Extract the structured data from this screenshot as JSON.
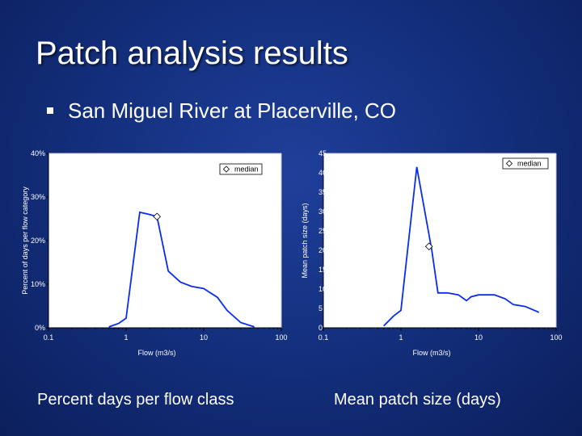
{
  "slide": {
    "title": "Patch analysis results",
    "bullet": "San Miguel River at Placerville, CO",
    "caption_left": "Percent days per flow class",
    "caption_right": "Mean patch size (days)"
  },
  "chart_data": [
    {
      "type": "line",
      "title": "",
      "xlabel": "Flow (m3/s)",
      "ylabel": "Percent of days per flow category",
      "x_scale": "log",
      "xlim": [
        0.1,
        100
      ],
      "ylim": [
        0,
        40
      ],
      "x_ticks": [
        "0.1",
        "1",
        "10",
        "100"
      ],
      "y_ticks": [
        "0%",
        "10%",
        "20%",
        "30%",
        "40%"
      ],
      "grid": false,
      "legend": {
        "position": "top-right",
        "label": "median"
      },
      "series": [
        {
          "x": [
            0.6,
            0.8,
            1.0,
            1.5,
            2.0,
            2.5,
            3.5,
            5,
            7,
            10,
            15,
            20,
            30,
            45
          ],
          "y": [
            0.2,
            1.0,
            2.2,
            26.5,
            26.0,
            25.5,
            13.0,
            10.5,
            9.5,
            9.0,
            7.0,
            4.0,
            1.2,
            0.2
          ]
        }
      ],
      "median": {
        "x": 2.5,
        "y": 25.5
      },
      "line_color": "#0a2cf0"
    },
    {
      "type": "line",
      "title": "",
      "xlabel": "Flow (m3/s)",
      "ylabel": "Mean patch size (days)",
      "x_scale": "log",
      "xlim": [
        0.1,
        100
      ],
      "ylim": [
        0,
        45
      ],
      "x_ticks": [
        "0.1",
        "1",
        "10",
        "100"
      ],
      "y_ticks": [
        "0",
        "5",
        "10",
        "15",
        "20",
        "25",
        "30",
        "35",
        "40",
        "45"
      ],
      "grid": false,
      "legend": {
        "position": "top-right",
        "label": "median"
      },
      "series": [
        {
          "x": [
            0.6,
            0.8,
            1.0,
            1.6,
            2.5,
            3.0,
            4.0,
            5.5,
            7,
            8,
            10,
            12,
            16,
            22,
            28,
            40,
            60
          ],
          "y": [
            0.5,
            3.0,
            4.5,
            41.5,
            20.0,
            9.0,
            9.0,
            8.5,
            7.0,
            8.0,
            8.5,
            8.5,
            8.5,
            7.5,
            6.0,
            5.5,
            4.0
          ]
        }
      ],
      "median": {
        "x": 2.3,
        "y": 21.0
      },
      "line_color": "#0a2cf0"
    }
  ]
}
